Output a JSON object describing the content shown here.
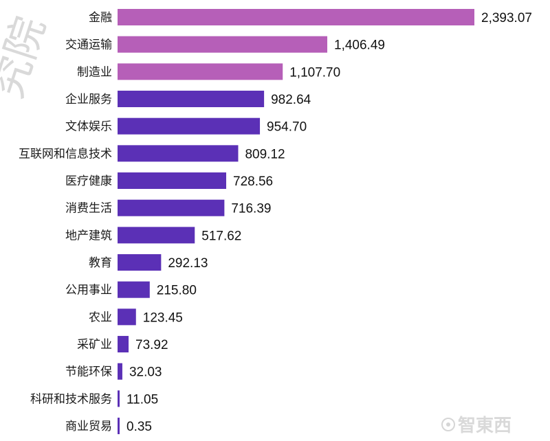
{
  "chart_data": {
    "type": "bar",
    "orientation": "horizontal",
    "categories": [
      "金融",
      "交通运输",
      "制造业",
      "企业服务",
      "文体娱乐",
      "互联网和信息技术",
      "医疗健康",
      "消费生活",
      "地产建筑",
      "教育",
      "公用事业",
      "农业",
      "采矿业",
      "节能环保",
      "科研和技术服务",
      "商业贸易"
    ],
    "values": [
      2393.07,
      1406.49,
      1107.7,
      982.64,
      954.7,
      809.12,
      728.56,
      716.39,
      517.62,
      292.13,
      215.8,
      123.45,
      73.92,
      32.03,
      11.05,
      0.35
    ],
    "value_labels": [
      "2,393.07",
      "1,406.49",
      "1,107.70",
      "982.64",
      "954.70",
      "809.12",
      "728.56",
      "716.39",
      "517.62",
      "292.13",
      "215.80",
      "123.45",
      "73.92",
      "32.03",
      "11.05",
      "0.35"
    ],
    "highlight_count": 3,
    "colors": {
      "highlight": "#b65fb8",
      "default": "#5b30b6"
    },
    "xlim": [
      0,
      2393.07
    ],
    "grid": false,
    "legend": false,
    "title": "",
    "xlabel": "",
    "ylabel": ""
  },
  "watermark": {
    "left_text": "究院",
    "logo_text": "智東西"
  }
}
